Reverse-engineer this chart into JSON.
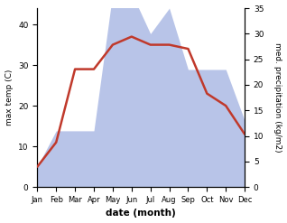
{
  "months": [
    "Jan",
    "Feb",
    "Mar",
    "Apr",
    "May",
    "Jun",
    "Jul",
    "Aug",
    "Sep",
    "Oct",
    "Nov",
    "Dec"
  ],
  "temperature": [
    5,
    11,
    29,
    29,
    35,
    37,
    35,
    35,
    34,
    23,
    20,
    13
  ],
  "precipitation": [
    4,
    11,
    11,
    11,
    38,
    38,
    30,
    35,
    23,
    23,
    23,
    13
  ],
  "temp_color": "#c0392b",
  "precip_fill_color": "#b8c4e8",
  "xlabel": "date (month)",
  "ylabel_left": "max temp (C)",
  "ylabel_right": "med. precipitation (kg/m2)",
  "ylim_left": [
    0,
    44
  ],
  "ylim_right": [
    0,
    35
  ],
  "yticks_left": [
    0,
    10,
    20,
    30,
    40
  ],
  "yticks_right": [
    0,
    5,
    10,
    15,
    20,
    25,
    30,
    35
  ],
  "background_color": "#ffffff"
}
